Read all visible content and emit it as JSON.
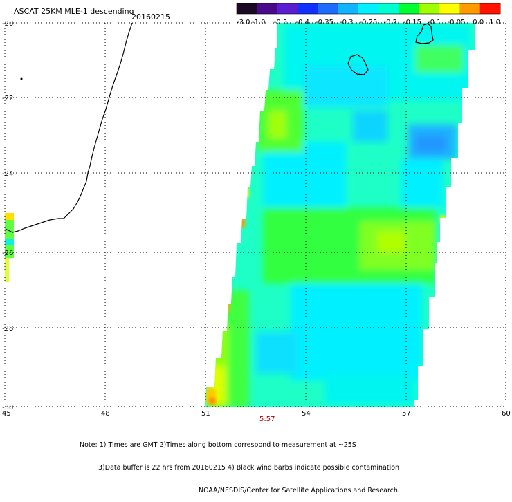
{
  "title": "ASCAT 25KM MLE-1 descending",
  "date": "20160215",
  "colorbar": {
    "labels": [
      "-3.0",
      "-1.0",
      "-0.5",
      "-0.4",
      "-0.35",
      "-0.3",
      "-0.25",
      "-0.2",
      "-0.15",
      "-0.1",
      "-0.05",
      "0.0",
      "1.0"
    ],
    "colors": [
      "#1a0a26",
      "#4a0a8c",
      "#5a1ed0",
      "#1030ff",
      "#1e6cff",
      "#10b4ff",
      "#00f0ff",
      "#00ffd0",
      "#00ff30",
      "#a0ff00",
      "#ffff00",
      "#ff9a00",
      "#ff1400"
    ]
  },
  "axes": {
    "lon_ticks": [
      "45",
      "48",
      "51",
      "54",
      "57",
      "60"
    ],
    "lat_ticks": [
      "-20",
      "-22",
      "-24",
      "-26",
      "-28",
      "-30"
    ]
  },
  "time_label": "5:57",
  "notes": {
    "line1": "Note: 1) Times are GMT 2)Times along bottom correspond to measurement at ~25S",
    "line2": "3)Data buffer is 22 hrs from 20160215 4) Black wind barbs indicate possible contamination",
    "line3": "NOAA/NESDIS/Center for Satellite Applications and Research"
  }
}
